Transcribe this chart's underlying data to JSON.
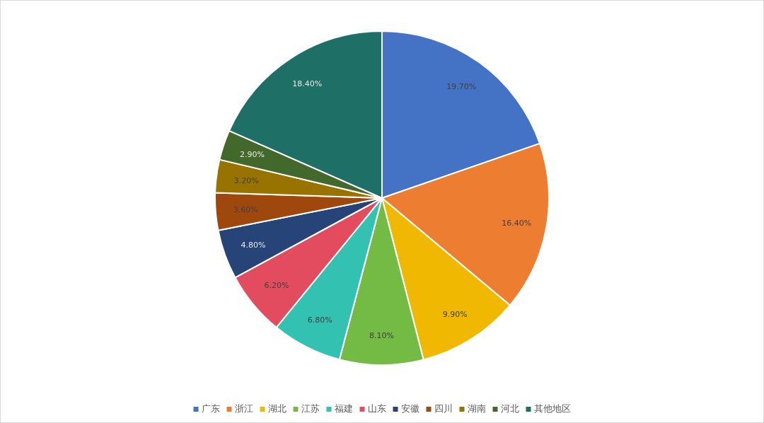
{
  "chart_data": {
    "type": "pie",
    "categories": [
      "广东",
      "浙江",
      "湖北",
      "江苏",
      "福建",
      "山东",
      "安徽",
      "四川",
      "湖南",
      "河北",
      "其他地区"
    ],
    "values": [
      19.7,
      16.4,
      9.9,
      8.1,
      6.8,
      6.2,
      4.8,
      3.6,
      3.2,
      2.9,
      18.4
    ],
    "value_labels": [
      "19.70%",
      "16.40%",
      "9.90%",
      "8.10%",
      "6.80%",
      "6.20%",
      "4.80%",
      "3.60%",
      "3.20%",
      "2.90%",
      "18.40%"
    ],
    "colors": [
      "#4472c4",
      "#ed7d31",
      "#f0b800",
      "#74bb46",
      "#33c1b1",
      "#e34b5f",
      "#264478",
      "#9e480e",
      "#997300",
      "#43682b",
      "#1e7066"
    ],
    "legend": "bottom"
  }
}
